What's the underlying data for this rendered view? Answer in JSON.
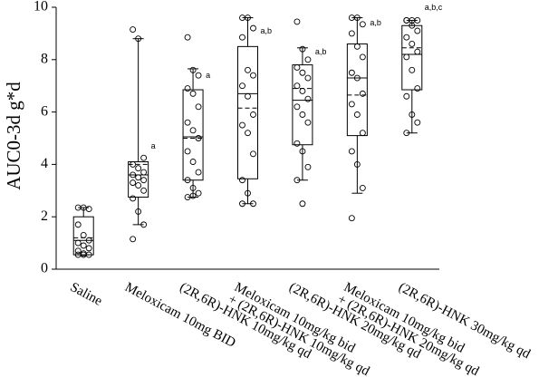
{
  "chart_data": {
    "type": "box",
    "y_label": "AUC0-3d g*d",
    "categories": [
      [
        "Saline"
      ],
      [
        "Meloxicam 10mg BID"
      ],
      [
        "(2R,6R)-HNK 10mg/kg qd"
      ],
      [
        "Meloxicam 10mg/kg bid",
        "+ (2R,6R)-HNK 10mg/kg qd"
      ],
      [
        "(2R,6R)-HNK 20mg/kg qd"
      ],
      [
        "Meloxicam 10mg/kg bid",
        "+ (2R,6R)-HNK 20mg/kg qd"
      ],
      [
        "(2R,6R)-HNK 30mg/kg qd"
      ]
    ],
    "boxes": [
      {
        "whisker_low": 0.55,
        "q1": 0.55,
        "median": 1.1,
        "mean": 1.2,
        "q3": 2.0,
        "whisker_high": 2.35
      },
      {
        "whisker_low": 1.7,
        "q1": 2.75,
        "median": 3.6,
        "mean": 4.0,
        "q3": 4.1,
        "whisker_high": 8.8
      },
      {
        "whisker_low": 2.75,
        "q1": 3.4,
        "median": 5.05,
        "mean": 5.0,
        "q3": 6.85,
        "whisker_high": 7.65
      },
      {
        "whisker_low": 2.5,
        "q1": 3.45,
        "median": 6.7,
        "mean": 6.15,
        "q3": 8.5,
        "whisker_high": 9.6
      },
      {
        "whisker_low": 3.4,
        "q1": 4.75,
        "median": 6.45,
        "mean": 6.9,
        "q3": 7.8,
        "whisker_high": 8.45
      },
      {
        "whisker_low": 2.9,
        "q1": 5.1,
        "median": 7.3,
        "mean": 6.65,
        "q3": 8.6,
        "whisker_high": 9.6
      },
      {
        "whisker_low": 5.2,
        "q1": 6.85,
        "median": 8.2,
        "mean": 8.45,
        "q3": 9.3,
        "whisker_high": 9.5
      }
    ],
    "points": [
      [
        2.35,
        2.35,
        2.3,
        1.7,
        1.3,
        1.1,
        1.0,
        0.9,
        0.8,
        0.7,
        0.6,
        0.55,
        0.55,
        0.55
      ],
      [
        9.15,
        8.8,
        4.25,
        4.0,
        3.85,
        3.7,
        3.6,
        3.5,
        3.4,
        3.3,
        3.2,
        3.0,
        2.7,
        2.2,
        1.7,
        1.15
      ],
      [
        8.85,
        7.6,
        7.4,
        6.9,
        6.7,
        6.2,
        5.6,
        5.3,
        5.0,
        4.5,
        4.1,
        3.7,
        3.4,
        3.1,
        2.9,
        2.75,
        2.8
      ],
      [
        9.6,
        9.6,
        9.2,
        8.85,
        7.6,
        7.4,
        7.0,
        6.6,
        5.9,
        5.5,
        5.2,
        4.4,
        3.4,
        2.9,
        2.5,
        2.5
      ],
      [
        9.45,
        8.4,
        8.0,
        7.7,
        7.5,
        7.3,
        7.0,
        6.8,
        6.5,
        6.2,
        5.9,
        5.6,
        4.8,
        4.5,
        3.9,
        3.4,
        2.5
      ],
      [
        9.6,
        9.6,
        9.35,
        9.0,
        8.5,
        8.1,
        7.5,
        7.3,
        6.7,
        6.3,
        5.9,
        5.2,
        4.5,
        4.0,
        3.1,
        1.95
      ],
      [
        9.5,
        9.5,
        9.5,
        9.5,
        9.3,
        9.1,
        8.85,
        8.6,
        8.3,
        8.1,
        7.6,
        6.9,
        6.6,
        5.9,
        5.6,
        5.2
      ]
    ],
    "annotations": [
      null,
      {
        "text": "a",
        "y": 4.6
      },
      {
        "text": "a",
        "y": 7.3
      },
      {
        "text": "a,b",
        "y": 9.0
      },
      {
        "text": "a,b",
        "y": 8.2
      },
      {
        "text": "a,b",
        "y": 9.3
      },
      {
        "text": "a,b,c",
        "y": 9.9
      }
    ],
    "ylim": [
      0,
      10
    ],
    "yticks": [
      0,
      2,
      4,
      6,
      8,
      10
    ]
  }
}
